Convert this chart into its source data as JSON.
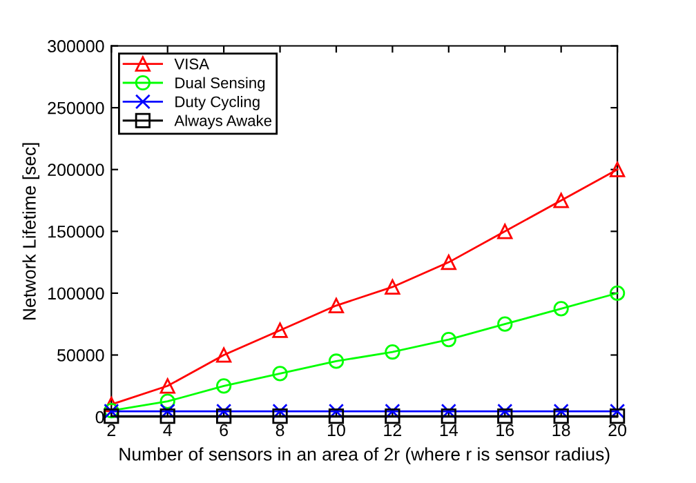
{
  "chart_data": {
    "type": "line",
    "xlabel": "Number of sensors in an area of 2r (where r is sensor radius)",
    "ylabel": "Network Lifetime [sec]",
    "x": [
      2,
      4,
      6,
      8,
      10,
      12,
      14,
      16,
      18,
      20
    ],
    "series": [
      {
        "name": "VISA",
        "color": "#ff0000",
        "marker": "triangle",
        "values": [
          10000,
          25000,
          50000,
          70000,
          90000,
          105000,
          125000,
          150000,
          175000,
          200000
        ]
      },
      {
        "name": "Dual Sensing",
        "color": "#00ff00",
        "marker": "circle",
        "values": [
          5000,
          12500,
          25000,
          35000,
          45000,
          52500,
          62500,
          75000,
          87500,
          100000
        ]
      },
      {
        "name": "Duty Cycling",
        "color": "#0000ff",
        "marker": "cross",
        "values": [
          4500,
          4500,
          4500,
          4500,
          4500,
          4500,
          4500,
          4500,
          4500,
          4500
        ]
      },
      {
        "name": "Always Awake",
        "color": "#000000",
        "marker": "square",
        "values": [
          500,
          500,
          500,
          500,
          500,
          500,
          500,
          500,
          500,
          500
        ]
      }
    ],
    "xlim": [
      2,
      20
    ],
    "xticks": [
      2,
      4,
      6,
      8,
      10,
      12,
      14,
      16,
      18,
      20
    ],
    "ylim": [
      0,
      300000
    ],
    "yticks": [
      0,
      50000,
      100000,
      150000,
      200000,
      250000,
      300000
    ],
    "grid": false,
    "legend": "top left",
    "line_style": "solid"
  }
}
